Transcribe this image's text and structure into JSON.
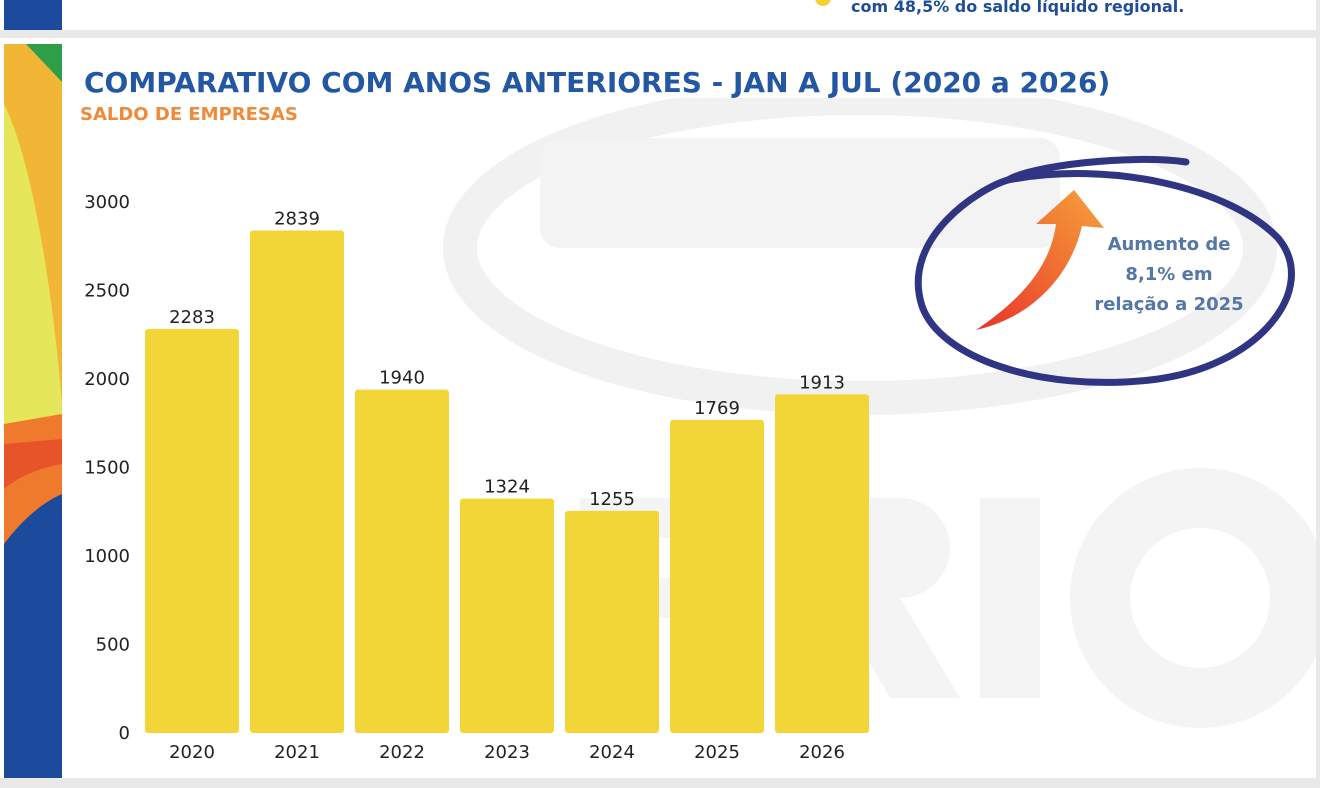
{
  "header_note": "com 48,5% do saldo líquido regional.",
  "title": "COMPARATIVO COM ANOS ANTERIORES - JAN A JUL (2020 a 2026)",
  "subtitle": "SALDO DE EMPRESAS",
  "callout": {
    "line1": "Aumento de",
    "line2": "8,1% em",
    "line3": "relação a 2025"
  },
  "colors": {
    "bar": "#f2d637",
    "title": "#2457a3",
    "subtitle": "#ef8a3a",
    "circle": "#2f3583",
    "callout_text": "#5577a6"
  },
  "chart_data": {
    "type": "bar",
    "categories": [
      "2020",
      "2021",
      "2022",
      "2023",
      "2024",
      "2025",
      "2026"
    ],
    "values": [
      2283,
      2839,
      1940,
      1324,
      1255,
      1769,
      1913
    ],
    "title": "COMPARATIVO COM ANOS ANTERIORES - JAN A JUL (2020 a 2026)",
    "subtitle": "SALDO DE EMPRESAS",
    "xlabel": "",
    "ylabel": "",
    "ylim": [
      0,
      3000
    ],
    "yticks": [
      "0",
      "500",
      "1000",
      "1500",
      "2000",
      "2500",
      "3000"
    ],
    "grid": false,
    "data_labels": [
      "2283",
      "2839",
      "1940",
      "1324",
      "1255",
      "1769",
      "1913"
    ]
  }
}
